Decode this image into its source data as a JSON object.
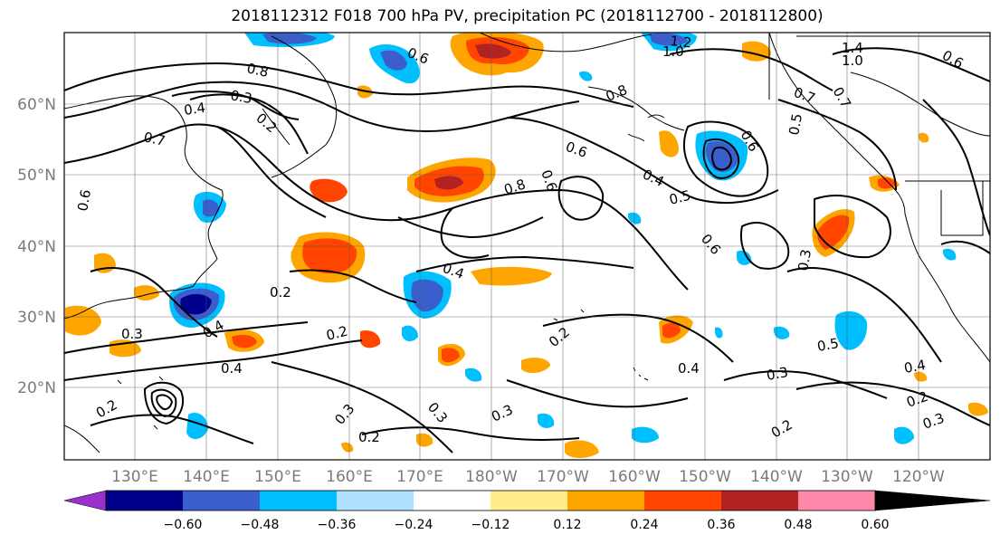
{
  "title": "2018112312 F018 700 hPa PV, precipitation PC (2018112700 - 2018112800)",
  "lat_labels": [
    "60°N",
    "50°N",
    "40°N",
    "30°N",
    "20°N"
  ],
  "lon_labels": [
    "130°E",
    "140°E",
    "150°E",
    "160°E",
    "170°E",
    "180°W",
    "170°W",
    "160°W",
    "150°W",
    "140°W",
    "130°W",
    "120°W"
  ],
  "colorbar": {
    "colors": [
      "#9932cc",
      "#00008b",
      "#3a5fcd",
      "#00bfff",
      "#b0e2ff",
      "#ffffff",
      "#ffec8b",
      "#ffa500",
      "#ff4500",
      "#b22222",
      "#ff88aa"
    ],
    "tick_labels": [
      "−0.60",
      "−0.48",
      "−0.36",
      "−0.24",
      "−0.12",
      "0.12",
      "0.24",
      "0.36",
      "0.48",
      "0.60"
    ]
  },
  "contour_labels": [
    "0.8",
    "0.3",
    "0.4",
    "0.2",
    "0.7",
    "0.6",
    "0.8",
    "0.6",
    "0.4",
    "0.5",
    "0.6",
    "0.8",
    "0.4",
    "0.6",
    "0.7",
    "0.5",
    "0.6",
    "0.3",
    "0.2",
    "0.3",
    "0.4",
    "0.2",
    "0.4",
    "0.3",
    "0.2",
    "0.3",
    "0.3",
    "0.2",
    "0.4",
    "0.3",
    "0.5",
    "0.4",
    "0.2",
    "0.3",
    "0.2",
    "1.2",
    "1.0",
    "1.4",
    "1.0",
    "0.7",
    "0.6",
    "0.2",
    "0.6"
  ]
}
